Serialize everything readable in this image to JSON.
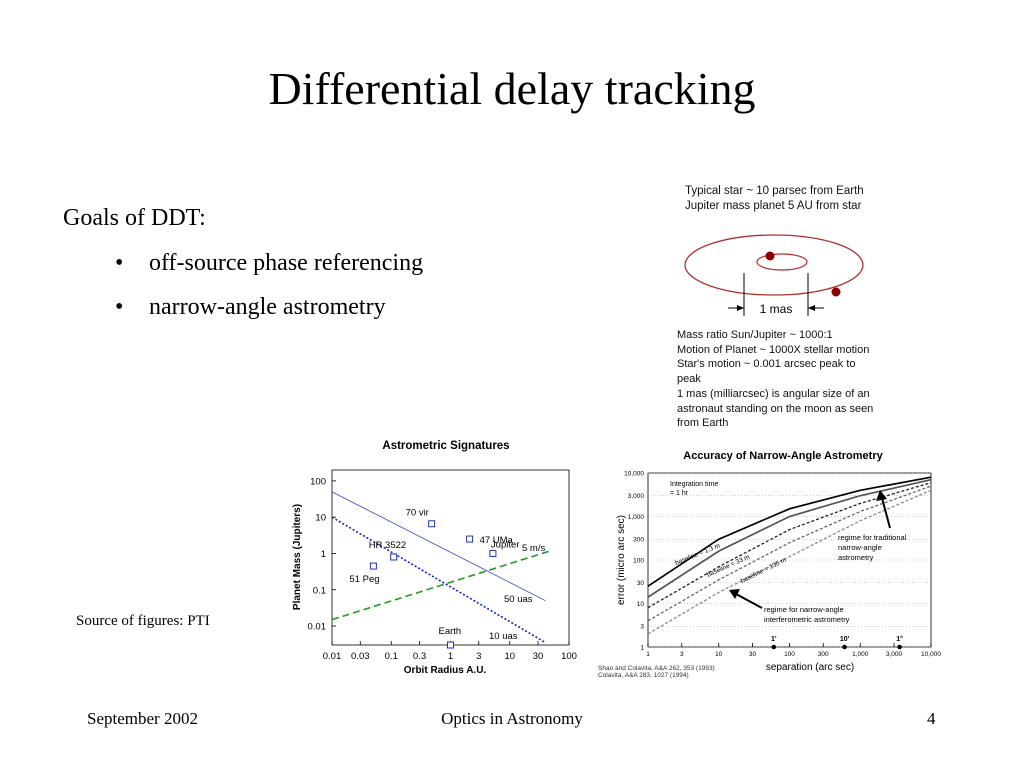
{
  "slide": {
    "title": "Differential delay tracking",
    "goals_heading": "Goals of DDT:",
    "bullets": [
      "off-source phase referencing",
      "narrow-angle astrometry"
    ],
    "bullet_char": "•",
    "source": "Source of figures: PTI",
    "footer": {
      "left": "September 2002",
      "center": "Optics in Astronomy",
      "right": "4"
    }
  },
  "orbit_figure": {
    "top_lines": [
      "Typical star ~ 10 parsec from Earth",
      "Jupiter mass planet 5 AU from star"
    ],
    "scale_label": "1 mas",
    "notes": [
      "Mass ratio Sun/Jupiter ~ 1000:1",
      "Motion of Planet ~ 1000X stellar motion",
      "Star's motion ~ 0.001 arcsec peak to",
      "peak",
      "1 mas (milliarcsec) is angular size of an",
      "astronaut standing on the moon as seen",
      "from Earth"
    ],
    "colors": {
      "orbit": "#b03030",
      "body": "#8b0000"
    }
  },
  "chart_data": [
    {
      "type": "scatter",
      "title": "Astrometric Signatures",
      "xlabel": "Orbit Radius A.U.",
      "ylabel": "Planet Mass (Jupiters)",
      "x_scale": "log",
      "y_scale": "log",
      "xlim": [
        0.01,
        100
      ],
      "ylim": [
        0.003,
        200
      ],
      "x_ticks": [
        "0.01",
        "0.03",
        "0.1",
        "0.3",
        "1",
        "3",
        "10",
        "30",
        "100"
      ],
      "y_ticks": [
        "100",
        "10",
        "1",
        "0.1",
        "0.01"
      ],
      "points": [
        {
          "label": "70 vir",
          "x": 0.48,
          "y": 6.6
        },
        {
          "label": "47 UMa",
          "x": 2.1,
          "y": 2.5
        },
        {
          "label": "Jupiter",
          "x": 5.2,
          "y": 1.0
        },
        {
          "label": "HR 3522",
          "x": 0.11,
          "y": 0.8
        },
        {
          "label": "51 Peg",
          "x": 0.05,
          "y": 0.45
        },
        {
          "label": "Earth",
          "x": 1.0,
          "y": 0.003
        }
      ],
      "lines": [
        {
          "label": "50 uas",
          "style": "solid",
          "color": "#3344cc",
          "x": [
            0.01,
            40
          ],
          "y": [
            50,
            0.05
          ]
        },
        {
          "label": "10 uas",
          "style": "dotted",
          "color": "#1122cc",
          "x": [
            0.01,
            40
          ],
          "y": [
            10,
            0.0035
          ]
        },
        {
          "label": "5 m/s",
          "style": "dashed",
          "color": "#229922",
          "x": [
            0.01,
            50
          ],
          "y": [
            0.015,
            1.2
          ]
        }
      ]
    },
    {
      "type": "line",
      "title": "Accuracy of Narrow-Angle Astrometry",
      "xlabel": "separation (arc sec)",
      "ylabel": "error (micro arc sec)",
      "x_scale": "log",
      "y_scale": "log",
      "xlim": [
        1,
        10000
      ],
      "ylim": [
        1,
        10000
      ],
      "x_ticks": [
        "1",
        "3",
        "10",
        "30",
        "100",
        "300",
        "1,000",
        "3,000",
        "10,000"
      ],
      "y_ticks": [
        "1",
        "3",
        "10",
        "30",
        "100",
        "300",
        "1,000",
        "3,000",
        "10,000"
      ],
      "x_markers": [
        {
          "label": "1'",
          "x": 60
        },
        {
          "label": "10'",
          "x": 600
        },
        {
          "label": "1°",
          "x": 3600
        }
      ],
      "series": [
        {
          "name": "",
          "style": "solid",
          "color": "#000000",
          "x": [
            1,
            10,
            100,
            1000,
            10000
          ],
          "y": [
            25,
            300,
            1500,
            4000,
            8000
          ]
        },
        {
          "name": "",
          "style": "solid",
          "color": "#555555",
          "x": [
            1,
            10,
            100,
            1000,
            10000
          ],
          "y": [
            14,
            160,
            1000,
            3000,
            7000
          ]
        },
        {
          "name": "",
          "style": "dashed",
          "color": "#222222",
          "x": [
            1,
            10,
            100,
            1000,
            10000
          ],
          "y": [
            8,
            70,
            500,
            2000,
            6000
          ]
        },
        {
          "name": "",
          "style": "dashed",
          "color": "#666666",
          "x": [
            1,
            10,
            100,
            1000,
            10000
          ],
          "y": [
            4,
            35,
            250,
            1300,
            5000
          ]
        },
        {
          "name": "",
          "style": "dashed",
          "color": "#888888",
          "x": [
            1,
            10,
            100,
            1000,
            10000
          ],
          "y": [
            2,
            18,
            120,
            800,
            4000
          ]
        }
      ],
      "annotations": [
        "Integration time",
        "= 1 hr",
        "baseline = 1.3 m",
        "baseline = 33 m",
        "baseline = 135 m",
        "regime for traditional",
        "narrow-angle",
        "astrometry",
        "regime for narrow-angle",
        "interferometric astrometry"
      ],
      "citations": [
        "Shao and Colavita, A&A 262, 353 (1993)",
        "Colavita, A&A 283, 1027 (1994)"
      ]
    }
  ]
}
